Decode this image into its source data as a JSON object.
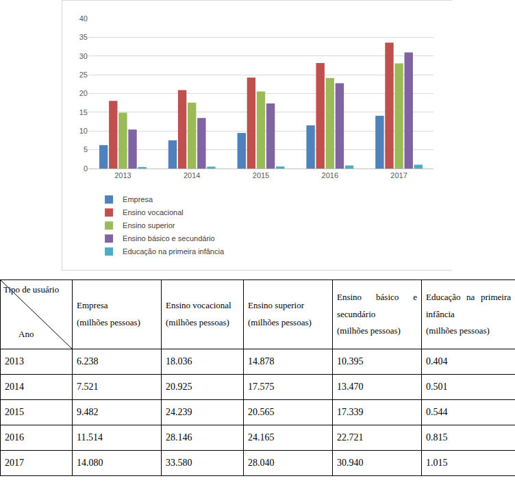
{
  "chart_data": {
    "type": "bar",
    "categories": [
      "2013",
      "2014",
      "2015",
      "2016",
      "2017"
    ],
    "series": [
      {
        "name": "Empresa",
        "color": "#4f81bd",
        "values": [
          6.238,
          7.521,
          9.482,
          11.514,
          14.08
        ]
      },
      {
        "name": "Ensino vocacional",
        "color": "#c0504d",
        "values": [
          18.036,
          20.925,
          24.239,
          28.146,
          33.58
        ]
      },
      {
        "name": "Ensino superior",
        "color": "#9bbb59",
        "values": [
          14.878,
          17.575,
          20.565,
          24.165,
          28.04
        ]
      },
      {
        "name": "Ensino básico e secundário",
        "color": "#8064a2",
        "values": [
          10.395,
          13.47,
          17.339,
          22.721,
          30.94
        ]
      },
      {
        "name": "Educação na primeira infância",
        "color": "#4bacc6",
        "values": [
          0.404,
          0.501,
          0.544,
          0.815,
          1.015
        ]
      }
    ],
    "ylim": [
      0,
      40
    ],
    "yticks": [
      0,
      5,
      10,
      15,
      20,
      25,
      30,
      35,
      40
    ],
    "grid": true,
    "legend": "bottom"
  },
  "table": {
    "corner": {
      "top": "Tipo de usuário",
      "bottom": "Ano"
    },
    "header": [
      {
        "name": "Empresa",
        "unit": "(milhões pessoas)"
      },
      {
        "name": "Ensino vocacional",
        "unit": "(milhões pessoas)"
      },
      {
        "name": "Ensino superior",
        "unit": "(milhões pessoas)"
      },
      {
        "name": "Ensino básico e secundário",
        "unit": "(milhões pessoas)"
      },
      {
        "name": "Educação na primeira infância",
        "unit": "(milhões pessoas)"
      }
    ],
    "rows": [
      [
        "2013",
        "6.238",
        "18.036",
        "14.878",
        "10.395",
        "0.404"
      ],
      [
        "2014",
        "7.521",
        "20.925",
        "17.575",
        "13.470",
        "0.501"
      ],
      [
        "2015",
        "9.482",
        "24.239",
        "20.565",
        "17.339",
        "0.544"
      ],
      [
        "2016",
        "11.514",
        "28.146",
        "24.165",
        "22.721",
        "0.815"
      ],
      [
        "2017",
        "14.080",
        "33.580",
        "28.040",
        "30.940",
        "1.015"
      ]
    ]
  }
}
